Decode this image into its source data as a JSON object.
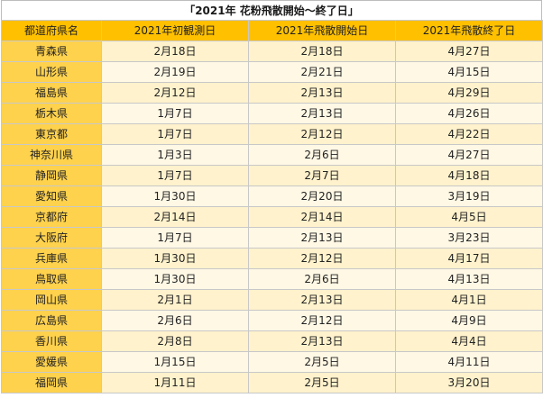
{
  "title": "「2021年 花粉飛散開始～終了日」",
  "colors": {
    "header_bg": "#ffc000",
    "pref_bg": "#ffd24d",
    "row_bg_odd": "#fff2cc",
    "row_bg_even": "#fff8e5",
    "border": "#c8c8c8"
  },
  "table": {
    "headers": [
      "都道府県名",
      "2021年初観測日",
      "2021年飛散開始日",
      "2021年飛散終了日"
    ],
    "rows": [
      [
        "青森県",
        "2月18日",
        "2月18日",
        "4月27日"
      ],
      [
        "山形県",
        "2月19日",
        "2月21日",
        "4月15日"
      ],
      [
        "福島県",
        "2月12日",
        "2月13日",
        "4月29日"
      ],
      [
        "栃木県",
        "1月7日",
        "2月13日",
        "4月26日"
      ],
      [
        "東京都",
        "1月7日",
        "2月12日",
        "4月22日"
      ],
      [
        "神奈川県",
        "1月3日",
        "2月6日",
        "4月27日"
      ],
      [
        "静岡県",
        "1月7日",
        "2月7日",
        "4月18日"
      ],
      [
        "愛知県",
        "1月30日",
        "2月20日",
        "3月19日"
      ],
      [
        "京都府",
        "2月14日",
        "2月14日",
        "4月5日"
      ],
      [
        "大阪府",
        "1月7日",
        "2月13日",
        "3月23日"
      ],
      [
        "兵庫県",
        "1月30日",
        "2月12日",
        "4月17日"
      ],
      [
        "鳥取県",
        "1月30日",
        "2月6日",
        "4月13日"
      ],
      [
        "岡山県",
        "2月1日",
        "2月13日",
        "4月1日"
      ],
      [
        "広島県",
        "2月6日",
        "2月12日",
        "4月9日"
      ],
      [
        "香川県",
        "2月8日",
        "2月13日",
        "4月4日"
      ],
      [
        "愛媛県",
        "1月15日",
        "2月5日",
        "4月11日"
      ],
      [
        "福岡県",
        "1月11日",
        "2月5日",
        "3月20日"
      ]
    ]
  }
}
